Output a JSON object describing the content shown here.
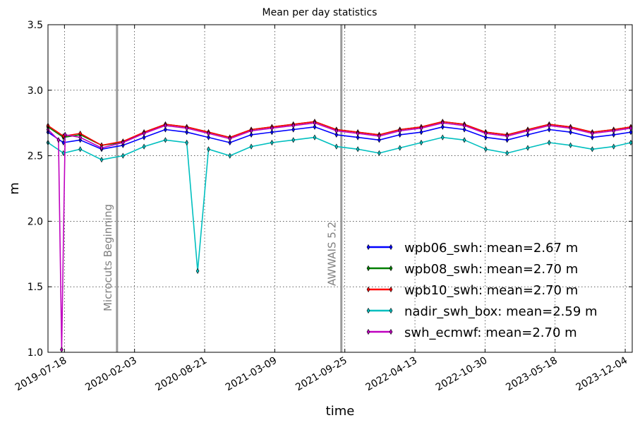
{
  "chart_data": {
    "type": "line",
    "title": "Mean per day statistics",
    "xlabel": "time",
    "ylabel": "m",
    "x_range": [
      "2019-06-01",
      "2023-12-24"
    ],
    "ylim": [
      1.0,
      3.5
    ],
    "x_ticks": [
      "2019-07-18",
      "2020-02-03",
      "2020-08-21",
      "2021-03-09",
      "2021-09-25",
      "2022-04-13",
      "2022-10-30",
      "2023-05-18",
      "2023-12-04"
    ],
    "y_ticks": [
      "1.0",
      "1.5",
      "2.0",
      "2.5",
      "3.0",
      "3.5"
    ],
    "grid": true,
    "legend_position": "lower-right",
    "vertical_lines": [
      {
        "date": "2019-12-15",
        "label": "Microcuts Beginning",
        "color": "#999999"
      },
      {
        "date": "2021-09-15",
        "label": "AWWAIS 5.2",
        "color": "#999999"
      }
    ],
    "series": [
      {
        "name": "wpb06_swh: mean=2.67 m",
        "color": "#0000ff",
        "x": [
          "2019-06-01",
          "2019-07-15",
          "2019-09-01",
          "2019-11-01",
          "2020-01-01",
          "2020-03-01",
          "2020-05-01",
          "2020-07-01",
          "2020-09-01",
          "2020-11-01",
          "2021-01-01",
          "2021-03-01",
          "2021-05-01",
          "2021-07-01",
          "2021-09-01",
          "2021-11-01",
          "2022-01-01",
          "2022-03-01",
          "2022-05-01",
          "2022-07-01",
          "2022-09-01",
          "2022-11-01",
          "2023-01-01",
          "2023-03-01",
          "2023-05-01",
          "2023-07-01",
          "2023-09-01",
          "2023-11-01",
          "2023-12-20"
        ],
        "values": [
          2.68,
          2.6,
          2.62,
          2.55,
          2.58,
          2.64,
          2.7,
          2.68,
          2.64,
          2.6,
          2.66,
          2.68,
          2.7,
          2.72,
          2.66,
          2.64,
          2.62,
          2.66,
          2.68,
          2.72,
          2.7,
          2.64,
          2.62,
          2.66,
          2.7,
          2.68,
          2.64,
          2.66,
          2.68
        ]
      },
      {
        "name": "wpb08_swh: mean=2.70 m",
        "color": "#007f00",
        "x": [
          "2019-06-01",
          "2019-07-15",
          "2019-09-01",
          "2019-11-01",
          "2020-01-01",
          "2020-03-01",
          "2020-05-01",
          "2020-07-01",
          "2020-09-01",
          "2020-11-01",
          "2021-01-01",
          "2021-03-01",
          "2021-05-01",
          "2021-07-01",
          "2021-09-01",
          "2021-11-01",
          "2022-01-01",
          "2022-03-01",
          "2022-05-01",
          "2022-07-01",
          "2022-09-01",
          "2022-11-01",
          "2023-01-01",
          "2023-03-01",
          "2023-05-01",
          "2023-07-01",
          "2023-09-01",
          "2023-11-01",
          "2023-12-20"
        ],
        "values": [
          2.72,
          2.64,
          2.66,
          2.58,
          2.6,
          2.68,
          2.74,
          2.72,
          2.68,
          2.64,
          2.7,
          2.72,
          2.74,
          2.76,
          2.7,
          2.68,
          2.66,
          2.7,
          2.72,
          2.76,
          2.74,
          2.68,
          2.66,
          2.7,
          2.74,
          2.72,
          2.68,
          2.7,
          2.72
        ]
      },
      {
        "name": "wpb10_swh: mean=2.70 m",
        "color": "#ff0000",
        "x": [
          "2019-06-01",
          "2019-07-15",
          "2019-09-01",
          "2019-11-01",
          "2020-01-01",
          "2020-03-01",
          "2020-05-01",
          "2020-07-01",
          "2020-09-01",
          "2020-11-01",
          "2021-01-01",
          "2021-03-01",
          "2021-05-01",
          "2021-07-01",
          "2021-09-01",
          "2021-11-01",
          "2022-01-01",
          "2022-03-01",
          "2022-05-01",
          "2022-07-01",
          "2022-09-01",
          "2022-11-01",
          "2023-01-01",
          "2023-03-01",
          "2023-05-01",
          "2023-07-01",
          "2023-09-01",
          "2023-11-01",
          "2023-12-20"
        ],
        "values": [
          2.73,
          2.65,
          2.67,
          2.58,
          2.61,
          2.68,
          2.74,
          2.72,
          2.68,
          2.64,
          2.7,
          2.72,
          2.74,
          2.76,
          2.7,
          2.68,
          2.66,
          2.7,
          2.72,
          2.76,
          2.74,
          2.68,
          2.66,
          2.7,
          2.74,
          2.72,
          2.68,
          2.7,
          2.72
        ]
      },
      {
        "name": "nadir_swh_box: mean=2.59 m",
        "color": "#00bfbf",
        "x": [
          "2019-06-01",
          "2019-07-15",
          "2019-09-01",
          "2019-11-01",
          "2020-01-01",
          "2020-03-01",
          "2020-05-01",
          "2020-07-01",
          "2020-08-01",
          "2020-09-01",
          "2020-11-01",
          "2021-01-01",
          "2021-03-01",
          "2021-05-01",
          "2021-07-01",
          "2021-09-01",
          "2021-11-01",
          "2022-01-01",
          "2022-03-01",
          "2022-05-01",
          "2022-07-01",
          "2022-09-01",
          "2022-11-01",
          "2023-01-01",
          "2023-03-01",
          "2023-05-01",
          "2023-07-01",
          "2023-09-01",
          "2023-11-01",
          "2023-12-20"
        ],
        "values": [
          2.6,
          2.52,
          2.55,
          2.47,
          2.5,
          2.57,
          2.62,
          2.6,
          1.62,
          2.55,
          2.5,
          2.57,
          2.6,
          2.62,
          2.64,
          2.57,
          2.55,
          2.52,
          2.56,
          2.6,
          2.64,
          2.62,
          2.55,
          2.52,
          2.56,
          2.6,
          2.58,
          2.55,
          2.57,
          2.6
        ]
      },
      {
        "name": "swh_ecmwf: mean=2.70 m",
        "color": "#bf00bf",
        "x": [
          "2019-06-01",
          "2019-07-01",
          "2019-07-10",
          "2019-07-20",
          "2019-09-01",
          "2019-11-01",
          "2020-01-01",
          "2020-03-01",
          "2020-05-01",
          "2020-07-01",
          "2020-09-01",
          "2020-11-01",
          "2021-01-01",
          "2021-03-01",
          "2021-05-01",
          "2021-07-01",
          "2021-09-01",
          "2021-11-01",
          "2022-01-01",
          "2022-03-01",
          "2022-05-01",
          "2022-07-01",
          "2022-09-01",
          "2022-11-01",
          "2023-01-01",
          "2023-03-01",
          "2023-05-01",
          "2023-07-01",
          "2023-09-01",
          "2023-11-01",
          "2023-12-20"
        ],
        "values": [
          2.7,
          2.62,
          1.02,
          2.66,
          2.64,
          2.56,
          2.6,
          2.67,
          2.73,
          2.71,
          2.67,
          2.63,
          2.69,
          2.71,
          2.73,
          2.75,
          2.69,
          2.67,
          2.65,
          2.69,
          2.71,
          2.75,
          2.73,
          2.67,
          2.65,
          2.69,
          2.73,
          2.71,
          2.67,
          2.69,
          2.71
        ]
      }
    ]
  }
}
